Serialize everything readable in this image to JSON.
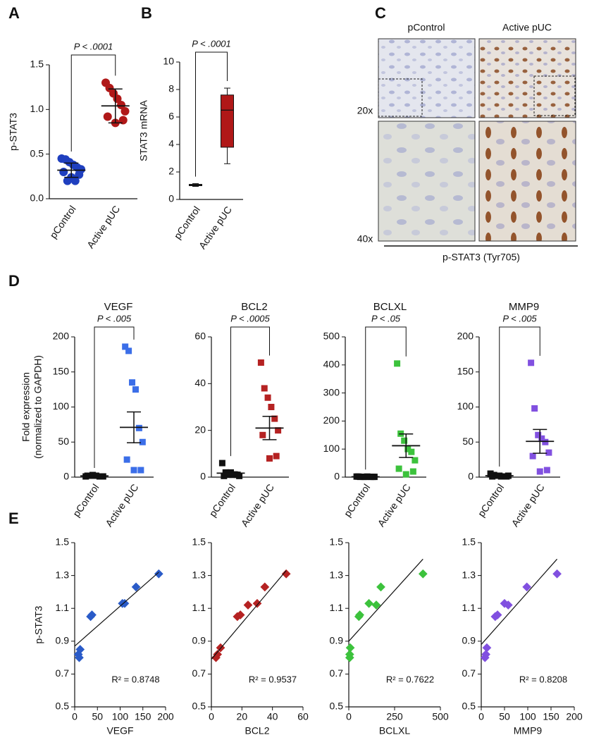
{
  "chart_data": [
    {
      "type": "strip",
      "panel": "A",
      "ylabel": "p-STAT3",
      "annotation": "P < .0001",
      "categories": [
        "pControl",
        "Active pUC"
      ],
      "marker": "circle",
      "groups": [
        {
          "color": "#1f3fbf",
          "values": [
            0.45,
            0.44,
            0.41,
            0.38,
            0.35,
            0.33,
            0.3,
            0.27,
            0.24,
            0.2,
            0.2
          ],
          "mean": 0.32,
          "error": 0.08
        },
        {
          "color": "#b01818",
          "values": [
            1.3,
            1.24,
            1.18,
            1.12,
            1.05,
            0.98,
            0.92,
            0.88,
            0.85
          ],
          "mean": 1.04,
          "error": 0.19
        }
      ],
      "ylim": [
        0,
        1.5
      ],
      "yticks": [
        {
          "value": 0,
          "label": "0.0"
        },
        0.5,
        {
          "value": 1,
          "label": "1.0"
        },
        1.5
      ]
    },
    {
      "type": "box",
      "panel": "B",
      "ylabel": "STAT3 mRNA",
      "annotation": "P < .0001",
      "categories": [
        "pControl",
        "Active pUC"
      ],
      "groups": [
        {
          "color": "#b01818",
          "min": 0.95,
          "q1": 1.0,
          "median": 1.05,
          "q3": 1.1,
          "max": 1.15
        },
        {
          "color": "#b01818",
          "min": 2.6,
          "q1": 3.8,
          "median": 6.5,
          "q3": 7.6,
          "max": 8.1
        }
      ],
      "ylim": [
        0,
        10
      ],
      "yticks": [
        0,
        2,
        4,
        6,
        8,
        10
      ]
    },
    {
      "type": "strip",
      "panel": "D",
      "title": "VEGF",
      "ylabel": "Fold expression",
      "ylabel_note": "(normalized to GAPDH)",
      "annotation": "P < .005",
      "categories": [
        "pControl",
        "Active pUC"
      ],
      "marker": "square",
      "groups": [
        {
          "color": "#111111",
          "values": [
            1,
            2,
            3,
            2,
            1,
            1,
            2,
            1,
            2
          ],
          "mean": 1.7,
          "error": 0.3
        },
        {
          "color": "#3b6ee8",
          "values": [
            186,
            180,
            135,
            125,
            70,
            50,
            25,
            10,
            10
          ],
          "mean": 71,
          "error": 22
        }
      ],
      "ylim": [
        0,
        200
      ],
      "yticks": [
        0,
        50,
        100,
        150,
        200
      ]
    },
    {
      "type": "strip",
      "title": "BCL2",
      "annotation": "P < .0005",
      "categories": [
        "pControl",
        "Active pUC"
      ],
      "marker": "square",
      "groups": [
        {
          "color": "#111111",
          "values": [
            6,
            2,
            1,
            1,
            1,
            0.5,
            0.5,
            1,
            2
          ],
          "mean": 1.7,
          "error": 0.6
        },
        {
          "color": "#b52222",
          "values": [
            49,
            38,
            34,
            30,
            25,
            20,
            18,
            9,
            8
          ],
          "mean": 21,
          "error": 5
        }
      ],
      "ylim": [
        0,
        60
      ],
      "yticks": [
        0,
        20,
        40,
        60
      ]
    },
    {
      "type": "strip",
      "title": "BCLXL",
      "annotation": "P < .05",
      "categories": [
        "pControl",
        "Active pUC"
      ],
      "marker": "square",
      "groups": [
        {
          "color": "#111111",
          "values": [
            2,
            1,
            1,
            2,
            1,
            1,
            2,
            1,
            1
          ],
          "mean": 1.3,
          "error": 0.2
        },
        {
          "color": "#3cc23c",
          "values": [
            405,
            155,
            130,
            100,
            90,
            60,
            30,
            20,
            10
          ],
          "mean": 112,
          "error": 42
        }
      ],
      "ylim": [
        0,
        500
      ],
      "yticks": [
        0,
        100,
        200,
        300,
        400,
        500
      ]
    },
    {
      "type": "strip",
      "title": "MMP9",
      "annotation": "P < .005",
      "categories": [
        "pControl",
        "Active pUC"
      ],
      "marker": "square",
      "groups": [
        {
          "color": "#111111",
          "values": [
            5,
            3,
            2,
            1,
            1,
            2,
            1,
            1,
            2
          ],
          "mean": 2,
          "error": 0.5
        },
        {
          "color": "#8150e0",
          "values": [
            163,
            98,
            60,
            55,
            50,
            35,
            30,
            10,
            8
          ],
          "mean": 51,
          "error": 17
        }
      ],
      "ylim": [
        0,
        200
      ],
      "yticks": [
        0,
        50,
        100,
        150,
        200
      ]
    },
    {
      "type": "scatter",
      "panel": "E",
      "ylabel": "p-STAT3",
      "xlabel": "VEGF",
      "annotation": "R² = 0.8748",
      "color": "#2a5bc8",
      "x": [
        10,
        8,
        12,
        35,
        38,
        105,
        110,
        135,
        185
      ],
      "y": [
        0.8,
        0.82,
        0.85,
        1.05,
        1.06,
        1.13,
        1.13,
        1.23,
        1.31
      ],
      "trendline": {
        "x": [
          0,
          185
        ],
        "y": [
          0.87,
          1.32
        ]
      },
      "xlim": [
        0,
        200
      ],
      "xticks": [
        0,
        50,
        100,
        150,
        200
      ],
      "ylim": [
        0.5,
        1.5
      ],
      "yticks": [
        0.5,
        0.7,
        0.9,
        1.1,
        1.3,
        1.5
      ]
    },
    {
      "type": "scatter",
      "xlabel": "BCL2",
      "annotation": "R² = 0.9537",
      "color": "#b52222",
      "x": [
        3,
        4,
        6,
        17,
        19,
        24,
        30,
        35,
        49
      ],
      "y": [
        0.8,
        0.82,
        0.86,
        1.05,
        1.06,
        1.12,
        1.13,
        1.23,
        1.31
      ],
      "trendline": {
        "x": [
          0,
          49
        ],
        "y": [
          0.79,
          1.33
        ]
      },
      "xlim": [
        0,
        60
      ],
      "xticks": [
        0,
        20,
        40,
        60
      ],
      "ylim": [
        0.5,
        1.5
      ],
      "yticks": [
        0.5,
        0.7,
        0.9,
        1.1,
        1.3,
        1.5
      ]
    },
    {
      "type": "scatter",
      "xlabel": "BCLXL",
      "annotation": "R² = 0.7622",
      "color": "#3cc23c",
      "x": [
        5,
        5,
        8,
        55,
        60,
        110,
        150,
        175,
        405
      ],
      "y": [
        0.8,
        0.82,
        0.86,
        1.05,
        1.06,
        1.13,
        1.12,
        1.23,
        1.31
      ],
      "trendline": {
        "x": [
          0,
          405
        ],
        "y": [
          0.9,
          1.4
        ]
      },
      "xlim": [
        0,
        500
      ],
      "xticks": [
        0,
        250,
        500
      ],
      "ylim": [
        0.5,
        1.5
      ],
      "yticks": [
        0.5,
        0.7,
        0.9,
        1.1,
        1.3,
        1.5
      ]
    },
    {
      "type": "scatter",
      "xlabel": "MMP9",
      "annotation": "R² = 0.8208",
      "color": "#8150e0",
      "x": [
        8,
        10,
        12,
        30,
        35,
        50,
        58,
        98,
        163
      ],
      "y": [
        0.8,
        0.82,
        0.86,
        1.05,
        1.06,
        1.13,
        1.12,
        1.23,
        1.31
      ],
      "trendline": {
        "x": [
          0,
          163
        ],
        "y": [
          0.88,
          1.4
        ]
      },
      "xlim": [
        0,
        200
      ],
      "xticks": [
        0,
        50,
        100,
        150,
        200
      ],
      "ylim": [
        0.5,
        1.5
      ],
      "yticks": [
        0.5,
        0.7,
        0.9,
        1.1,
        1.3,
        1.5
      ]
    }
  ],
  "micrographs": {
    "panel": "C",
    "columns": [
      "pControl",
      "Active pUC"
    ],
    "rows": [
      "20x",
      "40x"
    ],
    "stain": "p-STAT3 (Tyr705)"
  }
}
